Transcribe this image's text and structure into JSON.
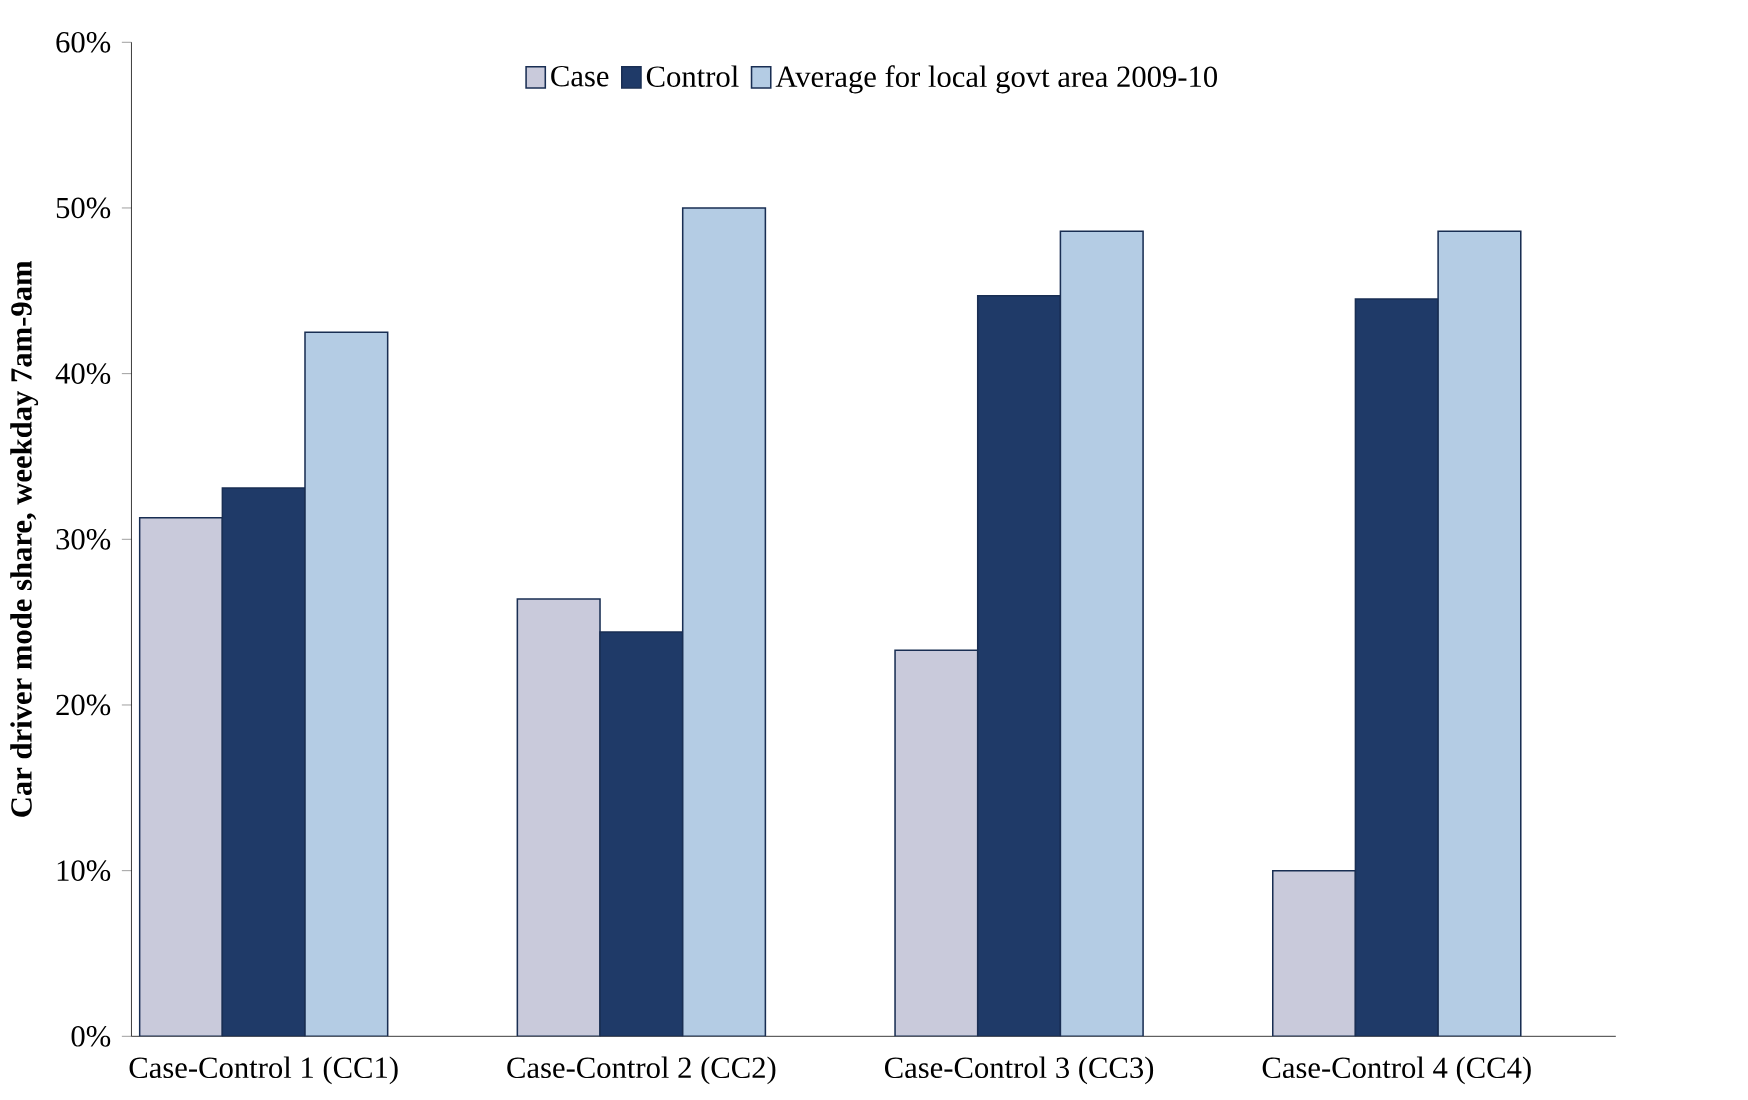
{
  "chart_data": {
    "type": "bar",
    "ylabel": "Car driver mode share, weekday 7am-9am",
    "categories": [
      "Case-Control 1 (CC1)",
      "Case-Control 2 (CC2)",
      "Case-Control 3 (CC3)",
      "Case-Control 4 (CC4)"
    ],
    "series": [
      {
        "name": "Case",
        "color": "#c9cadb",
        "values": [
          31.3,
          26.4,
          23.3,
          10.0
        ]
      },
      {
        "name": "Control",
        "color": "#1f3a68",
        "values": [
          33.1,
          24.4,
          44.7,
          44.5
        ]
      },
      {
        "name": "Average for local govt area 2009-10",
        "color": "#b4cce4",
        "values": [
          42.5,
          50.0,
          48.6,
          48.6
        ]
      }
    ],
    "ylim": [
      0,
      60
    ],
    "yticks": [
      {
        "value": 0,
        "label": "0%"
      },
      {
        "value": 10,
        "label": "10%"
      },
      {
        "value": 20,
        "label": "20%"
      },
      {
        "value": 30,
        "label": "30%"
      },
      {
        "value": 40,
        "label": "40%"
      },
      {
        "value": 50,
        "label": "50%"
      },
      {
        "value": 60,
        "label": "60%"
      }
    ],
    "legend": "top",
    "grid": false
  }
}
